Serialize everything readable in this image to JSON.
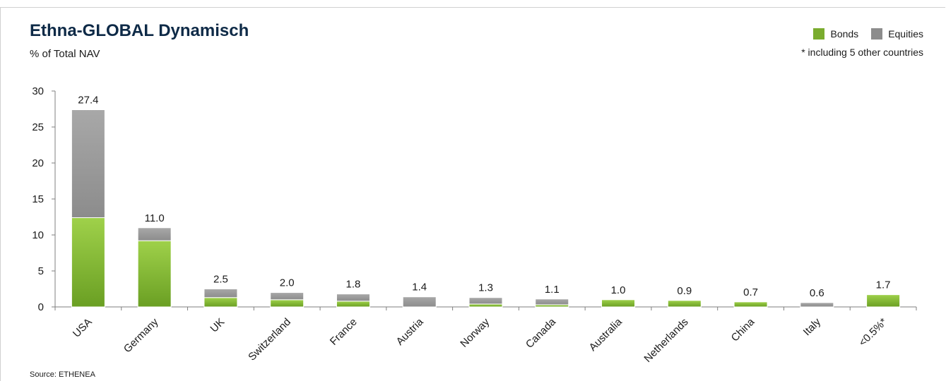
{
  "header": {
    "title": "Ethna-GLOBAL Dynamisch",
    "subtitle": "% of Total NAV",
    "note": "* including 5 other countries",
    "source": "Source: ETHENEA"
  },
  "legend": [
    {
      "name": "Bonds",
      "color": "#7aac2e"
    },
    {
      "name": "Equities",
      "color": "#8c8c8c"
    }
  ],
  "chart_data": {
    "type": "bar",
    "stacked": true,
    "title": "Ethna-GLOBAL Dynamisch",
    "ylabel": "% of Total NAV",
    "ylim": [
      0,
      30
    ],
    "yticks": [
      0,
      5,
      10,
      15,
      20,
      25,
      30
    ],
    "categories": [
      "USA",
      "Germany",
      "UK",
      "Switzerland",
      "France",
      "Austria",
      "Norway",
      "Canada",
      "Australia",
      "Netherlands",
      "China",
      "Italy",
      "<0.5%*"
    ],
    "series": [
      {
        "name": "Bonds",
        "color": "#7aac2e",
        "values": [
          12.4,
          9.2,
          1.3,
          1.0,
          0.8,
          0.0,
          0.4,
          0.3,
          1.0,
          0.9,
          0.7,
          0.0,
          1.7
        ]
      },
      {
        "name": "Equities",
        "color": "#8c8c8c",
        "values": [
          15.0,
          1.8,
          1.2,
          1.0,
          1.0,
          1.4,
          0.9,
          0.8,
          0.0,
          0.0,
          0.0,
          0.6,
          0.0
        ]
      }
    ],
    "totals": [
      "27.4",
      "11.0",
      "2.5",
      "2.0",
      "1.8",
      "1.4",
      "1.3",
      "1.1",
      "1.0",
      "0.9",
      "0.7",
      "0.6",
      "1.7"
    ],
    "grid": false,
    "legend_position": "top-right"
  }
}
